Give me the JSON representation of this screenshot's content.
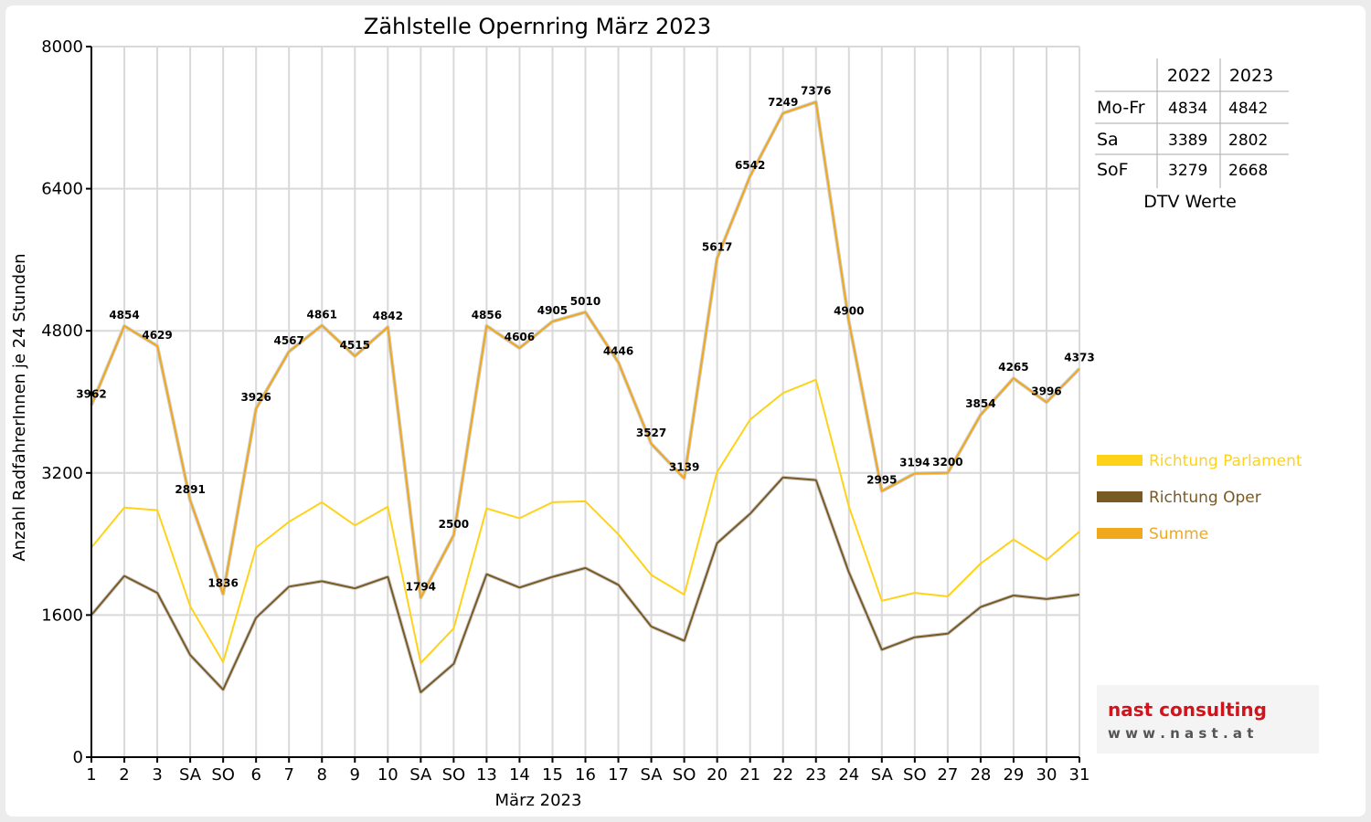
{
  "chart_data": {
    "type": "line",
    "title": "Zählstelle Opernring März 2023",
    "xlabel": "März 2023",
    "ylabel": "Anzahl RadfahrerInnen je 24 Stunden",
    "ylim": [
      0,
      8000
    ],
    "yticks": [
      "0",
      "1600",
      "3200",
      "4800",
      "6400",
      "8000"
    ],
    "grid": true,
    "legend_position": "right",
    "categories": [
      "1",
      "2",
      "3",
      "SA",
      "SO",
      "6",
      "7",
      "8",
      "9",
      "10",
      "SA",
      "SO",
      "13",
      "14",
      "15",
      "16",
      "17",
      "SA",
      "SO",
      "20",
      "21",
      "22",
      "23",
      "24",
      "SA",
      "SO",
      "27",
      "28",
      "29",
      "30",
      "31"
    ],
    "weekend_categories_red": [
      "SO"
    ],
    "series": [
      {
        "name": "Richtung Parlament",
        "color": "#ffd21a",
        "values": [
          2360,
          2810,
          2780,
          1700,
          1070,
          2360,
          2650,
          2870,
          2610,
          2820,
          1060,
          1450,
          2800,
          2690,
          2870,
          2880,
          2510,
          2050,
          1830,
          3210,
          3800,
          4100,
          4250,
          2820,
          1760,
          1850,
          1810,
          2180,
          2450,
          2220,
          2540
        ]
      },
      {
        "name": "Richtung Oper",
        "color": "#7a5a23",
        "values": [
          1600,
          2040,
          1850,
          1150,
          760,
          1570,
          1920,
          1980,
          1900,
          2030,
          730,
          1050,
          2060,
          1910,
          2030,
          2130,
          1940,
          1470,
          1310,
          2410,
          2740,
          3150,
          3120,
          2080,
          1210,
          1350,
          1390,
          1690,
          1820,
          1780,
          1830
        ]
      },
      {
        "name": "Summe",
        "color": "#f0a81c",
        "values": [
          3962,
          4854,
          4629,
          2891,
          1836,
          3926,
          4567,
          4861,
          4515,
          4842,
          1794,
          2500,
          4856,
          4606,
          4905,
          5010,
          4446,
          3527,
          3139,
          5617,
          6542,
          7249,
          7376,
          4900,
          2995,
          3194,
          3200,
          3854,
          4265,
          3996,
          4373
        ],
        "labels": [
          "3962",
          "4854",
          "4629",
          "2891",
          "1836",
          "3926",
          "4567",
          "4861",
          "4515",
          "4842",
          "1794",
          "2500",
          "4856",
          "4606",
          "4905",
          "5010",
          "4446",
          "3527",
          "3139",
          "5617",
          "6542",
          "7249",
          "7376",
          "4900",
          "2995",
          "3194",
          "3200",
          "3854",
          "4265",
          "3996",
          "4373"
        ]
      }
    ]
  },
  "dtv_table": {
    "caption": "DTV Werte",
    "columns": [
      "",
      "2022",
      "2023"
    ],
    "rows": [
      [
        "Mo-Fr",
        "4834",
        "4842"
      ],
      [
        "Sa",
        "3389",
        "2802"
      ],
      [
        "SoF",
        "3279",
        "2668"
      ]
    ]
  },
  "logo": {
    "name": "nast consulting",
    "url_text": "w w w . n a s t . a t"
  }
}
